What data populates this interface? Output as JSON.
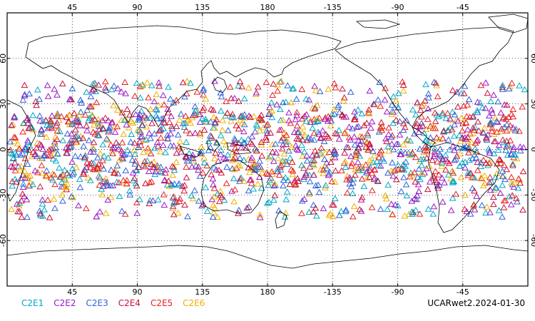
{
  "map": {
    "projection": "equirectangular",
    "lon_center": 180,
    "top_lon_ticks": [
      "45",
      "90",
      "135",
      "180",
      "-135",
      "-90",
      "-45"
    ],
    "bottom_lon_ticks": [
      "45",
      "90",
      "135",
      "180",
      "-135",
      "-90",
      "-45"
    ],
    "left_lat_ticks": [
      "60",
      "30",
      "0",
      "-30",
      "-60"
    ],
    "right_lat_ticks": [
      "60",
      "30",
      "0",
      "-30",
      "-60"
    ],
    "grid": "dotted",
    "marker": "open-triangle",
    "observation_band_lat": [
      -45,
      45
    ]
  },
  "legend": [
    {
      "label": "C2E1",
      "color": "#00a8c8"
    },
    {
      "label": "C2E2",
      "color": "#9a18c8"
    },
    {
      "label": "C2E3",
      "color": "#2c62d8"
    },
    {
      "label": "C2E4",
      "color": "#c81038"
    },
    {
      "label": "C2E5",
      "color": "#e82020"
    },
    {
      "label": "C2E6",
      "color": "#f0b000"
    }
  ],
  "product_label": "UCARwet2.2024-01-30"
}
